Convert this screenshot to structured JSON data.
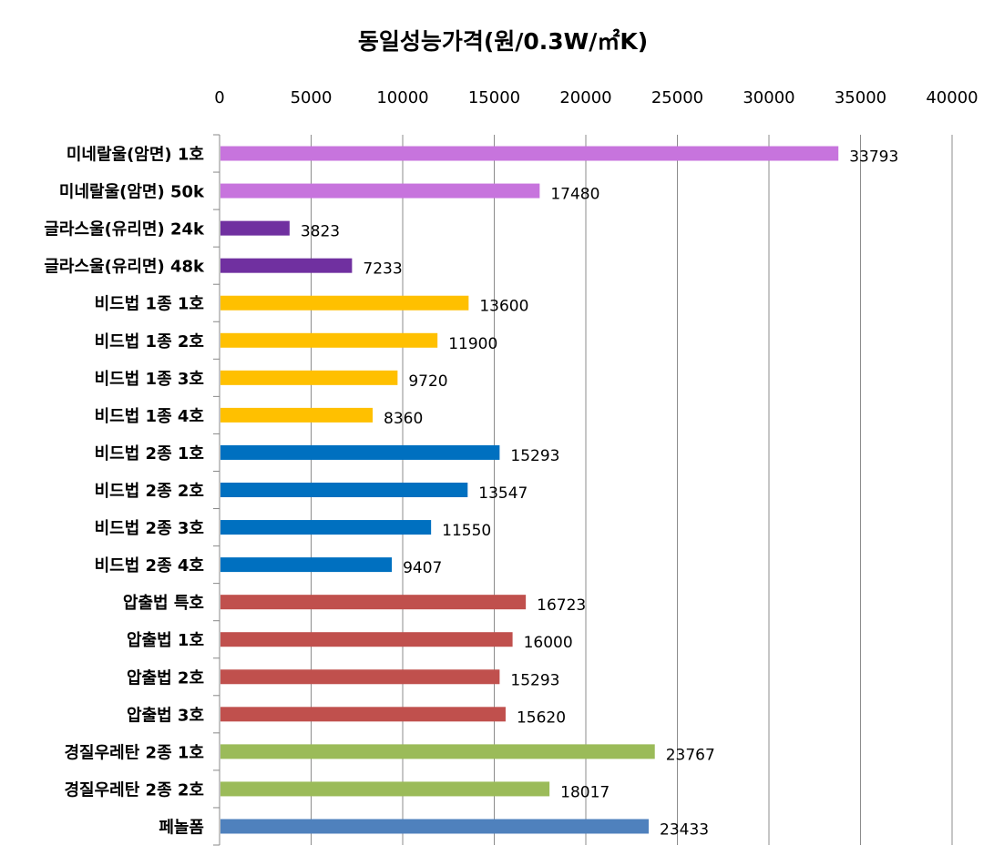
{
  "chart_data": {
    "type": "bar",
    "orientation": "horizontal",
    "title": "동일성능가격(원/0.3W/㎡K)",
    "xlabel": "",
    "ylabel": "",
    "xlim": [
      0,
      40000
    ],
    "x_ticks": [
      "0",
      "5000",
      "10000",
      "15000",
      "20000",
      "25000",
      "30000",
      "35000",
      "40000"
    ],
    "x_axis_position": "top",
    "grid": true,
    "legend": "none",
    "categories": [
      "미네랄울(암면) 1호",
      "미네랄울(암면) 50k",
      "글라스울(유리면) 24k",
      "글라스울(유리면) 48k",
      "비드법 1종 1호",
      "비드법 1종 2호",
      "비드법 1종 3호",
      "비드법 1종 4호",
      "비드법 2종 1호",
      "비드법 2종 2호",
      "비드법 2종 3호",
      "비드법 2종 4호",
      "압출법 특호",
      "압출법 1호",
      "압출법 2호",
      "압출법 3호",
      "경질우레탄 2종 1호",
      "경질우레탄 2종 2호",
      "페놀폼"
    ],
    "values": [
      33793,
      17480,
      3823,
      7233,
      13600,
      11900,
      9720,
      8360,
      15293,
      13547,
      11550,
      9407,
      16723,
      16000,
      15293,
      15620,
      23767,
      18017,
      23433
    ],
    "data_labels": [
      "33793",
      "17480",
      "3823",
      "7233",
      "13600",
      "11900",
      "9720",
      "8360",
      "15293",
      "13547",
      "11550",
      "9407",
      "16723",
      "16000",
      "15293",
      "15620",
      "23767",
      "18017",
      "23433"
    ],
    "bar_colors": [
      "#c774dd",
      "#c774dd",
      "#7030a0",
      "#7030a0",
      "#ffc000",
      "#ffc000",
      "#ffc000",
      "#ffc000",
      "#0070c0",
      "#0070c0",
      "#0070c0",
      "#0070c0",
      "#c0504d",
      "#c0504d",
      "#c0504d",
      "#c0504d",
      "#9bbb59",
      "#9bbb59",
      "#4f81bd"
    ]
  }
}
